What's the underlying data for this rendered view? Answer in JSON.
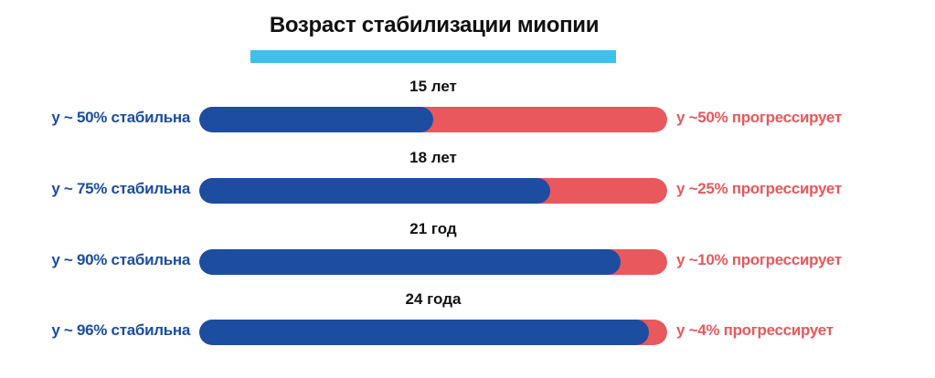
{
  "header": {
    "title": "Возраст стабилизации миопии"
  },
  "colors": {
    "stable": "#1c4da0",
    "progressing": "#e9585c",
    "accent_underline": "#3ec0ec",
    "title": "#111111"
  },
  "rows": [
    {
      "age": "15 лет",
      "stable_label": "у ~ 50% стабильна",
      "progress_label": "у ~50% прогрессирует",
      "stable_pct": 50,
      "progress_pct": 50
    },
    {
      "age": "18 лет",
      "stable_label": "у ~ 75% стабильна",
      "progress_label": "у ~25% прогрессирует",
      "stable_pct": 75,
      "progress_pct": 25
    },
    {
      "age": "21 год",
      "stable_label": "у ~ 90% стабильна",
      "progress_label": "у ~10% прогрессирует",
      "stable_pct": 90,
      "progress_pct": 10
    },
    {
      "age": "24 года",
      "stable_label": "у ~ 96% стабильна",
      "progress_label": "у ~4% прогрессирует",
      "stable_pct": 96,
      "progress_pct": 4
    }
  ],
  "chart_data": {
    "type": "bar",
    "orientation": "horizontal",
    "stacked": true,
    "title": "Возраст стабилизации миопии",
    "categories": [
      "15 лет",
      "18 лет",
      "21 год",
      "24 года"
    ],
    "series": [
      {
        "name": "стабильна",
        "color": "#1c4da0",
        "values": [
          50,
          75,
          90,
          96
        ]
      },
      {
        "name": "прогрессирует",
        "color": "#e9585c",
        "values": [
          50,
          25,
          10,
          4
        ]
      }
    ],
    "xlabel": "",
    "ylabel": "",
    "xlim": [
      0,
      100
    ],
    "grid": false,
    "legend": "inline labels left/right of bars",
    "annotations": [
      "у ~ 50% стабильна",
      "у ~50% прогрессирует",
      "у ~ 75% стабильна",
      "у ~25% прогрессирует",
      "у ~ 90% стабильна",
      "у ~10% прогрессирует",
      "у ~ 96% стабильна",
      "у ~4% прогрессирует"
    ]
  }
}
